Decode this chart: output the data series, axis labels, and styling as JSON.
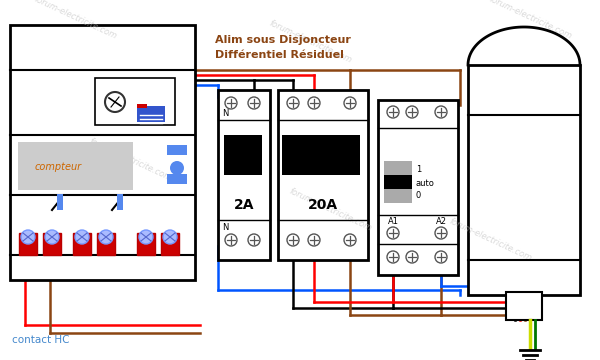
{
  "title_line1": "Alim sous Disjoncteur",
  "title_line2": "Différentiel Résiduel",
  "contact_hc_label": "contact HC",
  "watermark": "forum-electricite.com",
  "bg_color": "#ffffff",
  "text_color_title": "#8B4513",
  "text_color_label": "#4488cc",
  "breaker_2a_label": "2A",
  "breaker_20a_label": "20A",
  "wire_colors": {
    "red": "#ff0000",
    "blue": "#0055ff",
    "brown": "#8B4513",
    "black": "#000000",
    "yellow_green": "#ccdd00",
    "green": "#007700"
  }
}
